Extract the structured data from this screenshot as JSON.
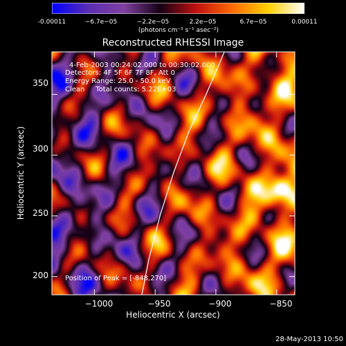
{
  "colorbar": {
    "ticks": [
      "-0.00011",
      "−6.7e−05",
      "−2.2e−05",
      "2.2e−05",
      "6.7e−05",
      "0.00011"
    ],
    "tick_values": [
      -0.00011,
      -6.7e-05,
      -2.2e-05,
      2.2e-05,
      6.7e-05,
      0.00011
    ],
    "units": "(photons cm⁻² s⁻¹ asec⁻²)",
    "colors": [
      "#0000ff",
      "#5a2db4",
      "#8040a0",
      "#140014",
      "#c01010",
      "#ff6a00",
      "#ffd000",
      "#ffffff"
    ]
  },
  "title": "Reconstructed RHESSI Image",
  "info": {
    "time_range": "4-Feb-2003 00:24:02.000 to 00:30:02.000",
    "detectors": "Detectors: 4F 5F 6F 7F 8F, Att 0",
    "energy": "Energy Range: 25.0 - 50.0 keV",
    "clean": "Clean     Total counts: 5.22E+03"
  },
  "peak": "Position of Peak = [-848,270]",
  "date": "28-May-2013 10:50",
  "chart_data": {
    "type": "heatmap",
    "title": "Reconstructed RHESSI Image",
    "xlabel": "Heliocentric X (arcsec)",
    "ylabel": "Heliocentric Y (arcsec)",
    "xlim": [
      -1035,
      -835
    ],
    "ylim": [
      185,
      385
    ],
    "xticks": [
      -1000,
      -950,
      -900,
      -850
    ],
    "xtick_labels": [
      "−1000",
      "−950",
      "−900",
      "−850"
    ],
    "yticks": [
      200,
      250,
      300,
      350
    ],
    "ytick_labels": [
      "200",
      "250",
      "300",
      "350"
    ],
    "clim": [
      -0.00011,
      0.00011
    ],
    "peak_position": [
      -848,
      270
    ],
    "limb_curve": [
      [
        -961,
        185
      ],
      [
        -955,
        215
      ],
      [
        -946,
        250
      ],
      [
        -935,
        285
      ],
      [
        -922,
        320
      ],
      [
        -908,
        350
      ],
      [
        -893,
        385
      ]
    ]
  }
}
